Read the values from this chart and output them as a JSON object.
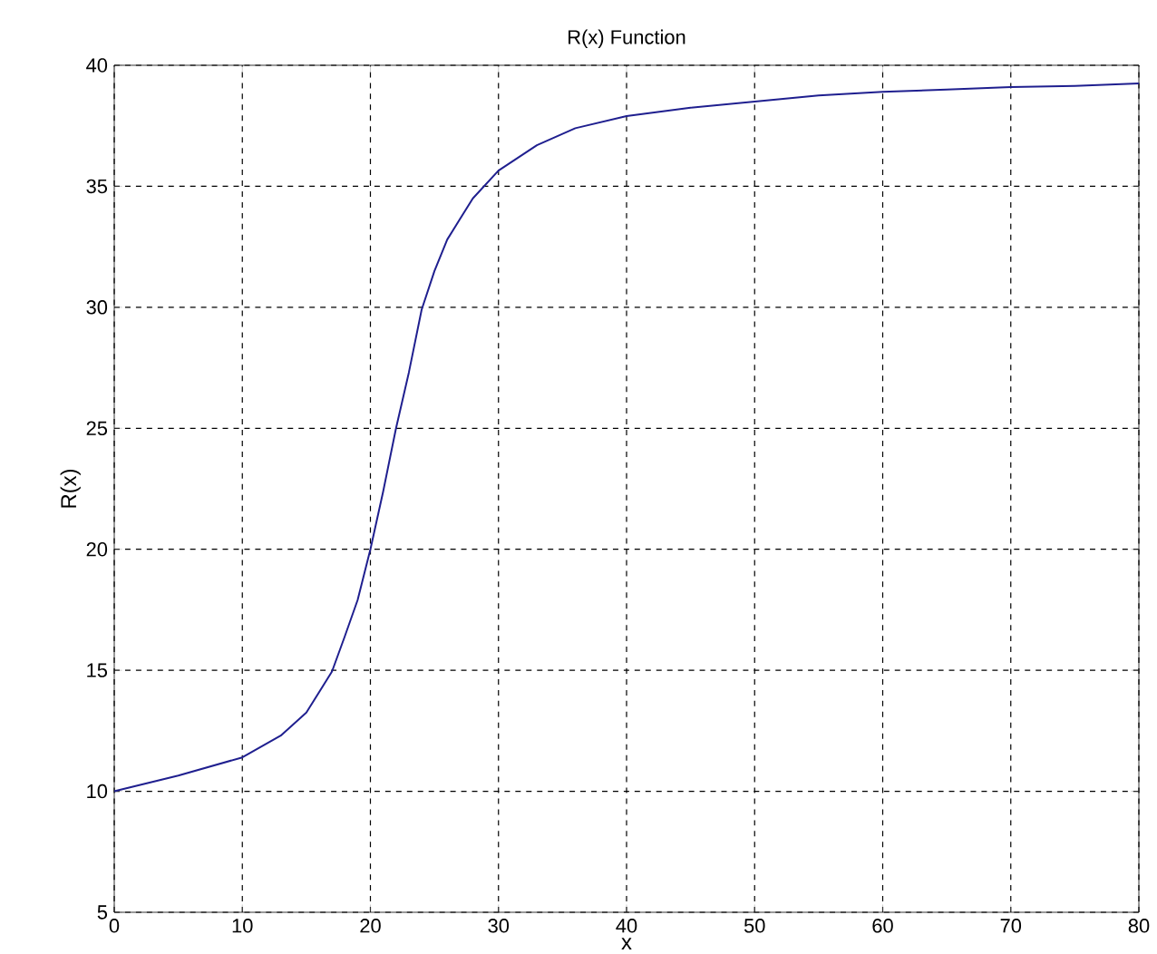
{
  "chart_data": {
    "type": "line",
    "title": "R(x) Function",
    "xlabel": "x",
    "ylabel": "R(x)",
    "x": [
      0,
      5,
      10,
      13,
      15,
      17,
      18,
      19,
      20,
      21,
      22,
      23,
      24,
      25,
      26,
      28,
      30,
      33,
      36,
      40,
      45,
      50,
      55,
      60,
      65,
      70,
      75,
      80
    ],
    "series": [
      {
        "color": "#1f1f8f",
        "values": [
          10.0,
          10.65,
          11.4,
          12.3,
          13.25,
          14.95,
          16.4,
          17.9,
          20.0,
          22.4,
          25.0,
          27.3,
          29.9,
          31.5,
          32.8,
          34.5,
          35.65,
          36.7,
          37.4,
          37.9,
          38.25,
          38.5,
          38.75,
          38.9,
          39.0,
          39.1,
          39.15,
          39.25
        ]
      }
    ],
    "xlim": [
      0,
      80
    ],
    "ylim": [
      5,
      40
    ],
    "xticks": [
      0,
      10,
      20,
      30,
      40,
      50,
      60,
      70,
      80
    ],
    "yticks": [
      5,
      10,
      15,
      20,
      25,
      30,
      35,
      40
    ],
    "grid": true,
    "line_style": "solid",
    "marker": "none"
  }
}
